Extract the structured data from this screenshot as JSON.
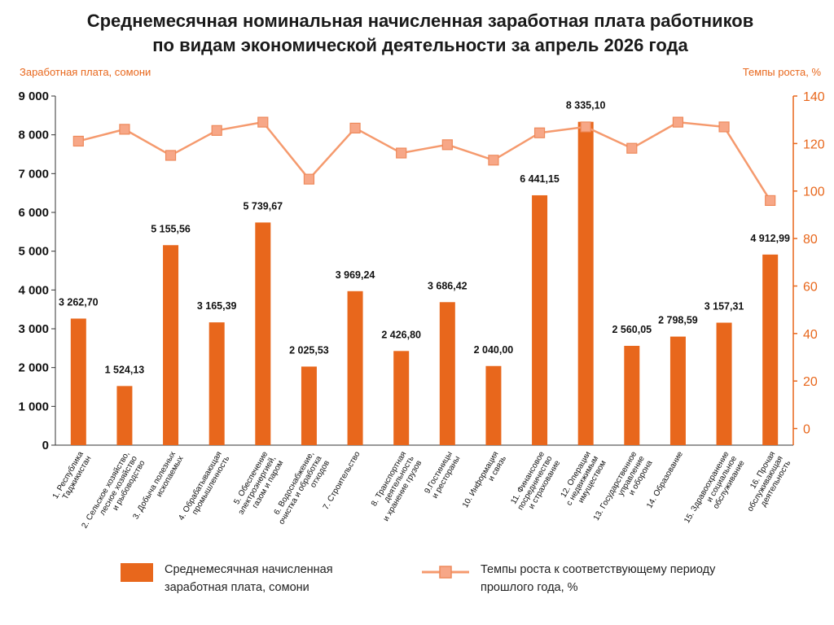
{
  "colors": {
    "bar": "#e8671c",
    "line": "#f59a6e",
    "marker_fill": "#f7a787",
    "marker_stroke": "#ee8a5c",
    "accent_text": "#e8671c"
  },
  "chart_data": {
    "type": "bar",
    "title": "Среднемесячная номинальная начисленная заработная плата работников по видам  экономической деятельности за апрель 2026 года",
    "title_lines": [
      "Среднемесячная номинальная начисленная заработная плата работников",
      "по видам  экономической деятельности за апрель 2026 года"
    ],
    "ylabel": "Заработная плата, сомони",
    "y2label": "Темпы роста, %",
    "ylim": [
      0,
      9000
    ],
    "y_ticks": [
      "0",
      "1 000",
      "2 000",
      "3 000",
      "4 000",
      "5 000",
      "6 000",
      "7 000",
      "8 000",
      "9 000"
    ],
    "y2lim": [
      -7,
      140
    ],
    "y2_ticks": [
      "0",
      "20",
      "40",
      "60",
      "80",
      "100",
      "120",
      "140"
    ],
    "grid": false,
    "legend_position": "bottom",
    "categories": [
      [
        "1. Республика",
        "Таджикистан"
      ],
      [
        "2. Сельское хозяйство,",
        "лесное хозяйство",
        "и рыбоводство"
      ],
      [
        "3. Добыча полезных",
        "ископаемых"
      ],
      [
        "4. Обрабатывающая",
        "промышленность"
      ],
      [
        "5. Обеспечение",
        "электроэнергией,",
        "газом и паром"
      ],
      [
        "6. Водоснабжение,",
        "очистка и обработка",
        "отходов"
      ],
      [
        "7. Строительство"
      ],
      [
        "8. Транспортная",
        "деятельность",
        "и хранение грузов"
      ],
      [
        "9.Гостиницы",
        "и рестораны"
      ],
      [
        "10. Информация",
        "и связь"
      ],
      [
        "11. Финансовое",
        "посредничество",
        "и страхование"
      ],
      [
        "12. Операции",
        "с недвижимым",
        "имуществом"
      ],
      [
        "13. Государственное",
        "управление",
        "и оборона"
      ],
      [
        "14. Образование"
      ],
      [
        "15. Здравоохранение",
        "и социальное",
        "обслуживание"
      ],
      [
        "16. Прочая",
        "обслуживающая",
        "деятельность"
      ]
    ],
    "series": [
      {
        "name": "Среднемесячная начисленная заработная плата, сомони",
        "type": "bar",
        "axis": "left",
        "values": [
          3262.7,
          1524.13,
          5155.56,
          3165.39,
          5739.67,
          2025.53,
          3969.24,
          2426.8,
          3686.42,
          2040.0,
          6441.15,
          8335.1,
          2560.05,
          2798.59,
          3157.31,
          4912.99
        ],
        "labels": [
          "3 262,70",
          "1 524,13",
          "5 155,56",
          "3 165,39",
          "5 739,67",
          "2 025,53",
          "3 969,24",
          "2 426,80",
          "3 686,42",
          "2 040,00",
          "6 441,15",
          "8 335,10",
          "2 560,05",
          "2 798,59",
          "3 157,31",
          "4 912,99"
        ]
      },
      {
        "name": "Темпы роста к соответствующему периоду прошлого года, %",
        "type": "line",
        "axis": "right",
        "values": [
          121,
          126,
          115,
          125.5,
          129,
          105,
          126.5,
          116,
          119.5,
          113,
          124.5,
          127,
          118,
          129,
          127,
          96
        ]
      }
    ],
    "legend": {
      "bar_lines": [
        "Среднемесячная начисленная",
        "заработная плата, сомони"
      ],
      "line_lines": [
        "Темпы роста к соответствующему периоду",
        "прошлого года, %"
      ]
    }
  }
}
